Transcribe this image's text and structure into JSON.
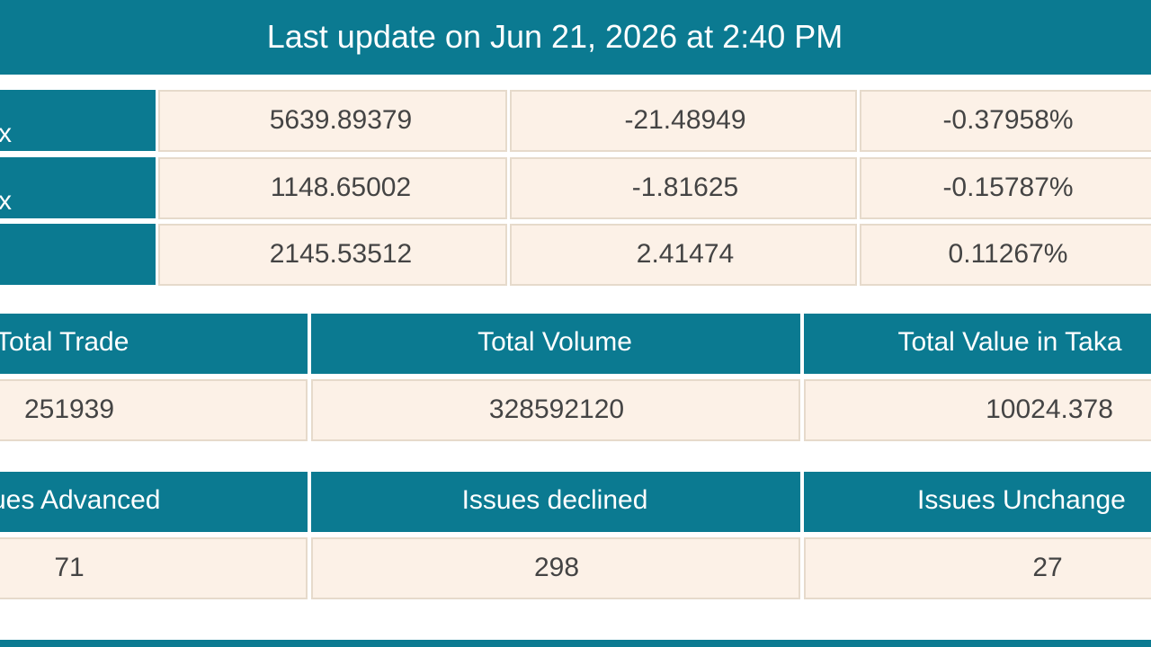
{
  "header": {
    "title": "Last update on Jun 21, 2026 at 2:40 PM"
  },
  "index_table": {
    "rows": [
      {
        "label": "x",
        "value": "5639.89379",
        "change": "-21.48949",
        "percent": "-0.37958%"
      },
      {
        "label": "x",
        "value": "1148.65002",
        "change": "-1.81625",
        "percent": "-0.15787%"
      },
      {
        "value": "2145.53512",
        "change": "2.41474",
        "percent": "0.11267%"
      }
    ]
  },
  "trade_table": {
    "headers": [
      "Total Trade",
      "Total Volume",
      "Total Value in Taka"
    ],
    "values": [
      "251939",
      "328592120",
      "10024.378"
    ]
  },
  "issues_table": {
    "headers": [
      "ues Advanced",
      "Issues declined",
      "Issues Unchange"
    ],
    "values": [
      "71",
      "298",
      "27"
    ]
  }
}
